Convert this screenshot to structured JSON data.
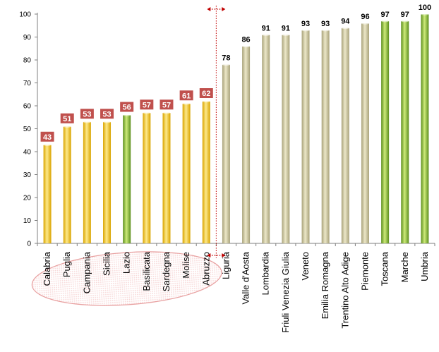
{
  "chart_data": {
    "type": "bar",
    "title": "",
    "xlabel": "",
    "ylabel": "",
    "ylim": [
      0,
      100
    ],
    "yticks": [
      0,
      10,
      20,
      30,
      40,
      50,
      60,
      70,
      80,
      90,
      100
    ],
    "grid": false,
    "categories": [
      "Calabria",
      "Puglia",
      "Campania",
      "Sicilia",
      "Lazio",
      "Basilicata",
      "Sardegna",
      "Molise",
      "Abruzzo",
      "Liguria",
      "Valle d'Aosta",
      "Lombardia",
      "Friuli Venezia Giulia",
      "Veneto",
      "Emilia Romagna",
      "Trentino Alto Adige",
      "Piemonte",
      "Toscana",
      "Marche",
      "Umbria"
    ],
    "values": [
      43,
      51,
      53,
      53,
      56,
      57,
      57,
      61,
      62,
      78,
      86,
      91,
      91,
      93,
      93,
      94,
      96,
      97,
      97,
      100
    ],
    "bar_groups": [
      "yellow",
      "yellow",
      "yellow",
      "yellow",
      "green",
      "yellow",
      "yellow",
      "yellow",
      "yellow",
      "khaki",
      "khaki",
      "khaki",
      "khaki",
      "khaki",
      "khaki",
      "khaki",
      "khaki",
      "green",
      "green",
      "green"
    ],
    "label_style": [
      "boxed",
      "boxed",
      "boxed",
      "boxed",
      "boxed",
      "boxed",
      "boxed",
      "boxed",
      "boxed",
      "plain",
      "plain",
      "plain",
      "plain",
      "plain",
      "plain",
      "plain",
      "plain",
      "plain",
      "plain",
      "plain"
    ],
    "divider_after_category": "Abruzzo",
    "highlighted_categories": [
      "Calabria",
      "Puglia",
      "Campania",
      "Sicilia",
      "Lazio",
      "Basilicata",
      "Sardegna",
      "Molise",
      "Abruzzo"
    ]
  },
  "colors": {
    "yellow_light": "#fde98a",
    "yellow_dark": "#d9a400",
    "green_light": "#cdea7a",
    "green_dark": "#5b8e1c",
    "khaki_light": "#ece7c8",
    "khaki_dark": "#a8a27a",
    "label_box": "#c0504d",
    "label_box_text": "#ffffff",
    "divider": "#c00000",
    "ellipse_stroke": "#e8a0a0",
    "ellipse_fill": "#f7d6d6"
  }
}
